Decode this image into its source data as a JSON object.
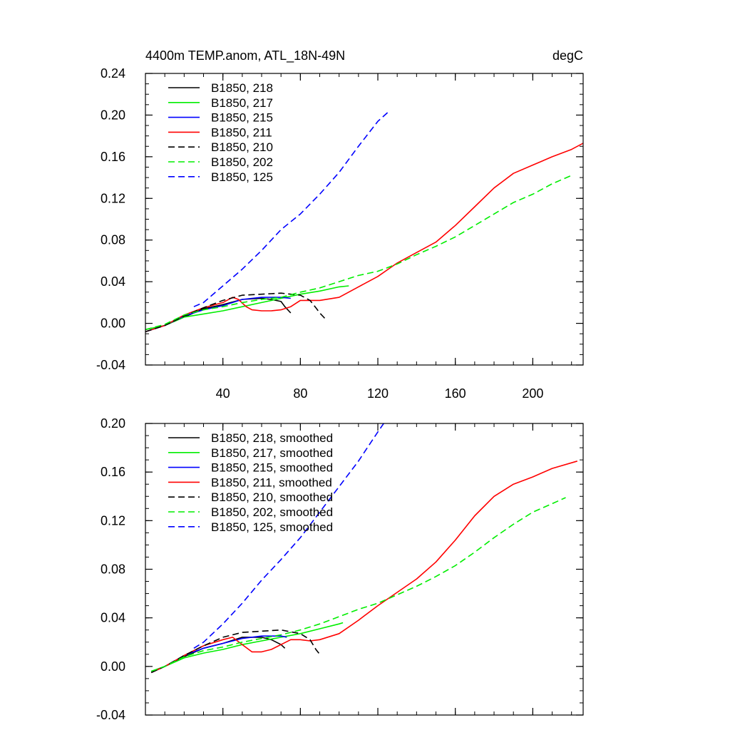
{
  "chart_data": [
    {
      "type": "line",
      "title": "4400m TEMP.anom, ATL_18N-49N",
      "units": "degC",
      "xlim": [
        0,
        226
      ],
      "ylim": [
        -0.04,
        0.24
      ],
      "xticks": [
        40,
        80,
        120,
        160,
        200
      ],
      "xtick_labels": [
        "40",
        "80",
        "120",
        "160",
        "200"
      ],
      "yticks": [
        -0.04,
        0.0,
        0.04,
        0.08,
        0.12,
        0.16,
        0.2,
        0.24
      ],
      "ytick_labels": [
        "-0.04",
        "0.00",
        "0.04",
        "0.08",
        "0.12",
        "0.16",
        "0.20",
        "0.24"
      ],
      "legend_position": "top-left",
      "series": [
        {
          "name": "B1850, 218",
          "color": "#000000",
          "dash": "solid",
          "x": [
            0,
            10,
            20,
            30,
            40,
            50,
            60,
            65,
            70,
            72,
            75
          ],
          "y": [
            -0.008,
            -0.002,
            0.006,
            0.014,
            0.018,
            0.023,
            0.024,
            0.023,
            0.021,
            0.016,
            0.01
          ]
        },
        {
          "name": "B1850, 217",
          "color": "#00ee00",
          "dash": "solid",
          "x": [
            0,
            10,
            20,
            30,
            40,
            50,
            60,
            70,
            80,
            90,
            100,
            105
          ],
          "y": [
            -0.006,
            -0.002,
            0.006,
            0.009,
            0.012,
            0.016,
            0.02,
            0.024,
            0.028,
            0.031,
            0.035,
            0.036
          ]
        },
        {
          "name": "B1850, 215",
          "color": "#0000ff",
          "dash": "solid",
          "x": [
            0,
            10,
            20,
            30,
            40,
            50,
            60,
            70,
            75
          ],
          "y": [
            -0.008,
            -0.002,
            0.007,
            0.013,
            0.017,
            0.023,
            0.025,
            0.025,
            0.024
          ]
        },
        {
          "name": "B1850, 211",
          "color": "#ff0000",
          "dash": "solid",
          "x": [
            0,
            10,
            20,
            30,
            40,
            45,
            48,
            52,
            55,
            60,
            65,
            70,
            75,
            80,
            85,
            90,
            100,
            110,
            120,
            130,
            140,
            150,
            160,
            170,
            180,
            190,
            200,
            210,
            220,
            226
          ],
          "y": [
            -0.008,
            -0.002,
            0.008,
            0.015,
            0.02,
            0.025,
            0.023,
            0.016,
            0.013,
            0.012,
            0.012,
            0.013,
            0.016,
            0.022,
            0.022,
            0.022,
            0.025,
            0.035,
            0.045,
            0.058,
            0.068,
            0.078,
            0.094,
            0.112,
            0.13,
            0.144,
            0.152,
            0.16,
            0.167,
            0.173
          ]
        },
        {
          "name": "B1850, 210",
          "color": "#000000",
          "dash": "dashed",
          "x": [
            0,
            10,
            20,
            30,
            40,
            50,
            60,
            70,
            80,
            85,
            88,
            90,
            93
          ],
          "y": [
            -0.008,
            -0.002,
            0.007,
            0.015,
            0.022,
            0.027,
            0.028,
            0.029,
            0.027,
            0.022,
            0.015,
            0.01,
            0.004
          ]
        },
        {
          "name": "B1850, 202",
          "color": "#00ee00",
          "dash": "dashed",
          "x": [
            0,
            10,
            20,
            30,
            40,
            50,
            60,
            70,
            80,
            90,
            100,
            110,
            120,
            130,
            140,
            150,
            160,
            170,
            180,
            190,
            200,
            210,
            220
          ],
          "y": [
            -0.006,
            -0.001,
            0.008,
            0.013,
            0.016,
            0.02,
            0.023,
            0.025,
            0.03,
            0.034,
            0.04,
            0.046,
            0.05,
            0.057,
            0.066,
            0.074,
            0.083,
            0.094,
            0.105,
            0.116,
            0.124,
            0.134,
            0.142
          ]
        },
        {
          "name": "B1850, 125",
          "color": "#0000ff",
          "dash": "dashed",
          "x": [
            25,
            30,
            40,
            50,
            60,
            70,
            80,
            90,
            100,
            110,
            120,
            126
          ],
          "y": [
            0.016,
            0.02,
            0.036,
            0.052,
            0.07,
            0.09,
            0.105,
            0.124,
            0.145,
            0.17,
            0.194,
            0.204
          ]
        }
      ]
    },
    {
      "type": "line",
      "title": "",
      "xlim": [
        0,
        226
      ],
      "ylim": [
        -0.04,
        0.2
      ],
      "xticks": [
        40,
        80,
        120,
        160,
        200
      ],
      "yticks": [
        -0.04,
        0.0,
        0.04,
        0.08,
        0.12,
        0.16,
        0.2
      ],
      "ytick_labels": [
        "-0.04",
        "0.00",
        "0.04",
        "0.08",
        "0.12",
        "0.16",
        "0.20"
      ],
      "legend_position": "top-left",
      "series": [
        {
          "name": "B1850, 218, smoothed",
          "color": "#000000",
          "dash": "solid",
          "x": [
            3,
            10,
            20,
            30,
            40,
            50,
            60,
            65,
            70,
            72
          ],
          "y": [
            -0.005,
            0.0,
            0.008,
            0.015,
            0.019,
            0.024,
            0.024,
            0.022,
            0.018,
            0.015
          ]
        },
        {
          "name": "B1850, 217, smoothed",
          "color": "#00ee00",
          "dash": "solid",
          "x": [
            3,
            10,
            20,
            30,
            40,
            50,
            60,
            70,
            80,
            90,
            100,
            102
          ],
          "y": [
            -0.004,
            0.0,
            0.007,
            0.011,
            0.014,
            0.018,
            0.021,
            0.024,
            0.027,
            0.031,
            0.035,
            0.036
          ]
        },
        {
          "name": "B1850, 215, smoothed",
          "color": "#0000ff",
          "dash": "solid",
          "x": [
            3,
            10,
            20,
            30,
            40,
            50,
            60,
            70,
            73
          ],
          "y": [
            -0.005,
            0.0,
            0.009,
            0.015,
            0.019,
            0.023,
            0.025,
            0.025,
            0.024
          ]
        },
        {
          "name": "B1850, 211, smoothed",
          "color": "#ff0000",
          "dash": "solid",
          "x": [
            3,
            10,
            20,
            30,
            40,
            45,
            50,
            55,
            60,
            65,
            70,
            75,
            80,
            85,
            90,
            100,
            110,
            120,
            130,
            140,
            150,
            160,
            170,
            180,
            190,
            200,
            210,
            223
          ],
          "y": [
            -0.005,
            0.0,
            0.009,
            0.017,
            0.022,
            0.024,
            0.018,
            0.012,
            0.012,
            0.014,
            0.018,
            0.022,
            0.022,
            0.021,
            0.022,
            0.027,
            0.038,
            0.05,
            0.061,
            0.072,
            0.086,
            0.104,
            0.124,
            0.14,
            0.15,
            0.156,
            0.163,
            0.169
          ]
        },
        {
          "name": "B1850, 210, smoothed",
          "color": "#000000",
          "dash": "dashed",
          "x": [
            3,
            10,
            20,
            30,
            40,
            50,
            60,
            70,
            80,
            85,
            88,
            90
          ],
          "y": [
            -0.005,
            0.0,
            0.009,
            0.017,
            0.024,
            0.028,
            0.029,
            0.03,
            0.027,
            0.022,
            0.014,
            0.01
          ]
        },
        {
          "name": "B1850, 202, smoothed",
          "color": "#00ee00",
          "dash": "dashed",
          "x": [
            3,
            10,
            20,
            30,
            40,
            50,
            60,
            70,
            80,
            90,
            100,
            110,
            120,
            130,
            140,
            150,
            160,
            170,
            180,
            190,
            200,
            210,
            217
          ],
          "y": [
            -0.004,
            0.0,
            0.008,
            0.013,
            0.016,
            0.02,
            0.023,
            0.026,
            0.03,
            0.035,
            0.041,
            0.047,
            0.052,
            0.059,
            0.066,
            0.074,
            0.083,
            0.094,
            0.106,
            0.117,
            0.127,
            0.134,
            0.139
          ]
        },
        {
          "name": "B1850, 125, smoothed",
          "color": "#0000ff",
          "dash": "dashed",
          "x": [
            25,
            30,
            40,
            50,
            60,
            70,
            80,
            90,
            100,
            110,
            120,
            123
          ],
          "y": [
            0.015,
            0.02,
            0.035,
            0.052,
            0.071,
            0.088,
            0.106,
            0.127,
            0.148,
            0.169,
            0.193,
            0.2
          ]
        }
      ]
    }
  ]
}
